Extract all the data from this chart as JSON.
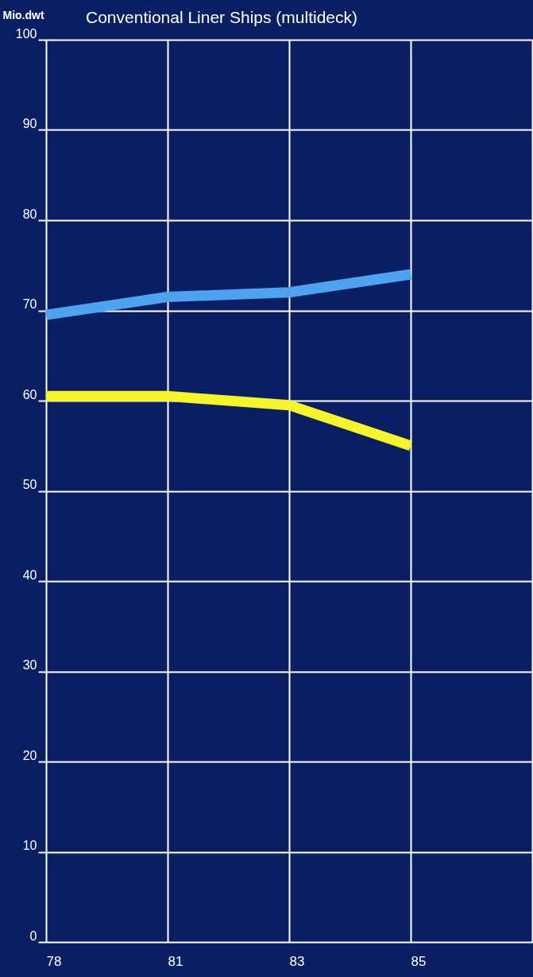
{
  "chart_data": {
    "type": "line",
    "title": "Conventional Liner Ships (multideck)",
    "ylabel": "Mio.dwt",
    "categories": [
      "78",
      "81",
      "83",
      "85",
      null
    ],
    "series": [
      {
        "color": "#4da3ef",
        "values": [
          69.5,
          71.5,
          72,
          74,
          null
        ]
      },
      {
        "color": "#f5f52a",
        "values": [
          60.5,
          60.5,
          59.5,
          55,
          null
        ]
      }
    ],
    "ylim": [
      0,
      100
    ],
    "yticks": [
      0,
      10,
      20,
      30,
      40,
      50,
      60,
      70,
      80,
      90,
      100
    ],
    "grid": true,
    "legend": false
  }
}
